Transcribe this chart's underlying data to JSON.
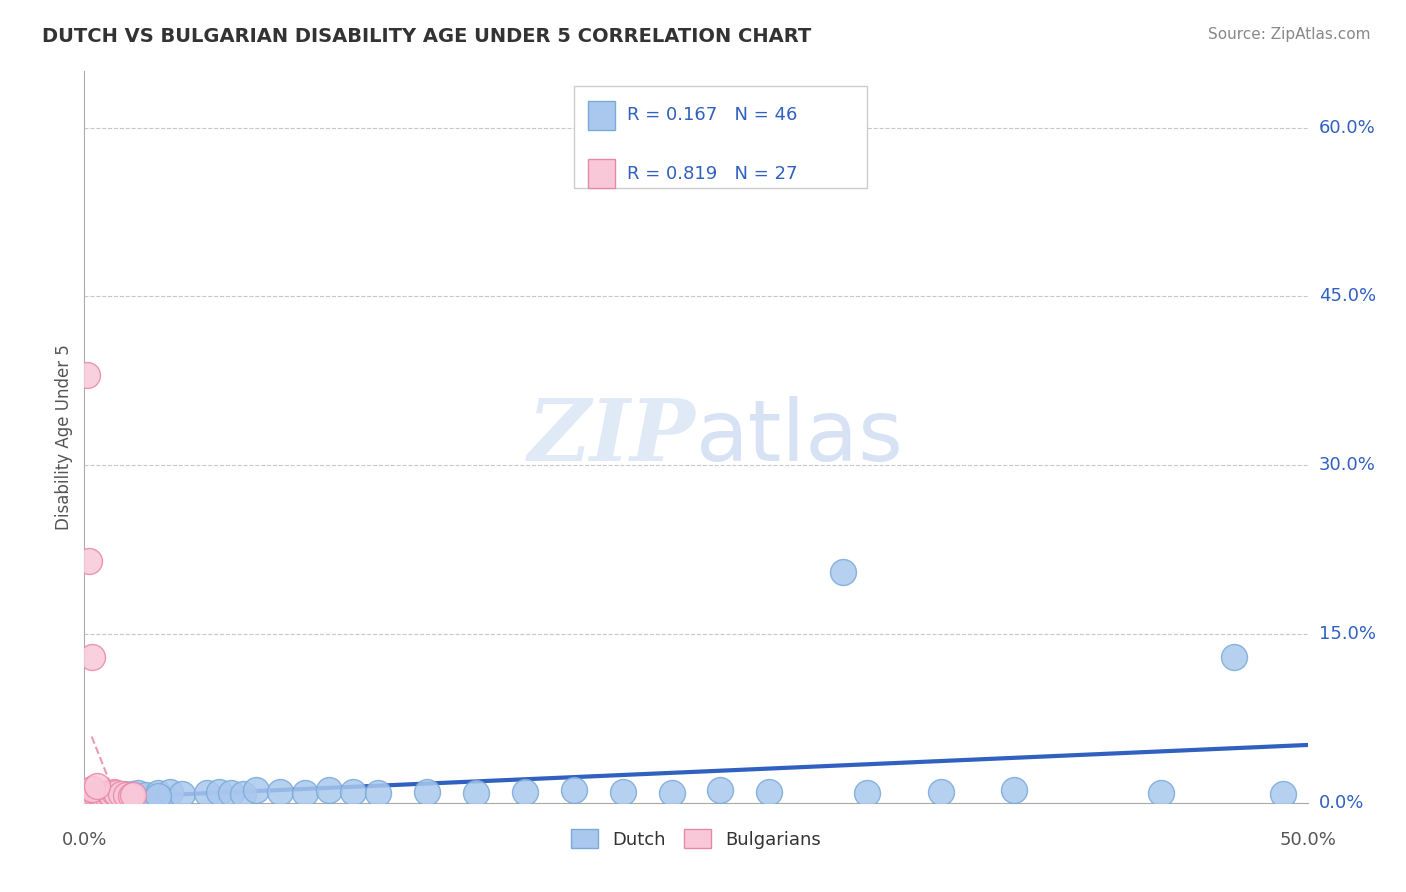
{
  "title": "DUTCH VS BULGARIAN DISABILITY AGE UNDER 5 CORRELATION CHART",
  "source": "Source: ZipAtlas.com",
  "ylabel": "Disability Age Under 5",
  "xlim": [
    0.0,
    0.5
  ],
  "ylim": [
    0.0,
    0.65
  ],
  "dutch_R": 0.167,
  "dutch_N": 46,
  "bulgarian_R": 0.819,
  "bulgarian_N": 27,
  "dutch_color": "#aac8ee",
  "dutch_edge": "#7aaad8",
  "bulgarian_color": "#f9c8d8",
  "bulgarian_edge": "#e888a8",
  "trend_blue": "#3060c0",
  "trend_pink": "#e05878",
  "legend_text_color": "#3060c0",
  "title_color": "#333333",
  "source_color": "#888888",
  "background": "#ffffff",
  "grid_color": "#c8c8c8",
  "ytick_vals": [
    0.0,
    0.15,
    0.3,
    0.45,
    0.6
  ],
  "ytick_labels": [
    "0.0%",
    "15.0%",
    "30.0%",
    "45.0%",
    "60.0%"
  ],
  "dutch_x": [
    0.001,
    0.002,
    0.003,
    0.004,
    0.005,
    0.006,
    0.007,
    0.008,
    0.009,
    0.01,
    0.012,
    0.014,
    0.016,
    0.018,
    0.02,
    0.022,
    0.025,
    0.03,
    0.035,
    0.04,
    0.05,
    0.055,
    0.06,
    0.065,
    0.07,
    0.08,
    0.09,
    0.1,
    0.11,
    0.12,
    0.14,
    0.16,
    0.18,
    0.2,
    0.22,
    0.24,
    0.26,
    0.28,
    0.32,
    0.35,
    0.38,
    0.44,
    0.31,
    0.47,
    0.49,
    0.03
  ],
  "dutch_y": [
    0.005,
    0.004,
    0.006,
    0.005,
    0.007,
    0.006,
    0.005,
    0.007,
    0.006,
    0.008,
    0.007,
    0.006,
    0.008,
    0.007,
    0.008,
    0.009,
    0.007,
    0.009,
    0.01,
    0.008,
    0.009,
    0.01,
    0.009,
    0.008,
    0.011,
    0.01,
    0.009,
    0.011,
    0.01,
    0.009,
    0.01,
    0.009,
    0.01,
    0.011,
    0.01,
    0.009,
    0.011,
    0.01,
    0.009,
    0.01,
    0.011,
    0.009,
    0.205,
    0.13,
    0.008,
    0.006
  ],
  "bulgarian_x": [
    0.001,
    0.001,
    0.002,
    0.002,
    0.003,
    0.003,
    0.004,
    0.004,
    0.005,
    0.005,
    0.006,
    0.006,
    0.007,
    0.007,
    0.008,
    0.008,
    0.009,
    0.01,
    0.011,
    0.012,
    0.013,
    0.015,
    0.017,
    0.019,
    0.02,
    0.003,
    0.005
  ],
  "bulgarian_y": [
    0.005,
    0.38,
    0.004,
    0.215,
    0.006,
    0.13,
    0.005,
    0.005,
    0.007,
    0.006,
    0.008,
    0.007,
    0.006,
    0.007,
    0.008,
    0.006,
    0.008,
    0.009,
    0.008,
    0.01,
    0.009,
    0.008,
    0.007,
    0.006,
    0.007,
    0.012,
    0.015
  ]
}
